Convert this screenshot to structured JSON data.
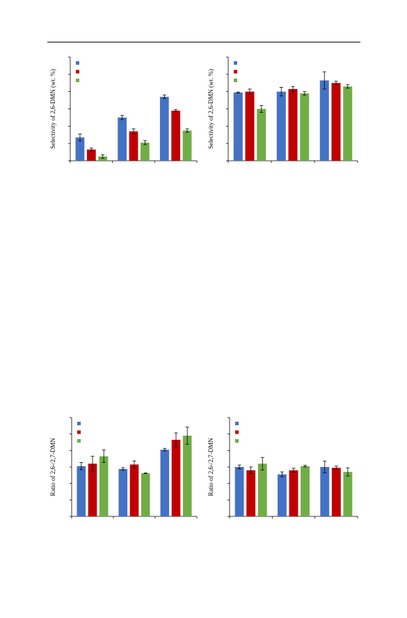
{
  "page": {
    "header_rule": true
  },
  "chart_data": [
    {
      "type": "bar",
      "ylabel": "Selectivity of 2,6-DMN (wt. %)",
      "ylim": [
        0,
        60
      ],
      "yticks": [
        0,
        10,
        20,
        30,
        40,
        50,
        60
      ],
      "groups": 3,
      "legend": "top-left",
      "series": [
        {
          "color": "#4472C4",
          "values": [
            13.5,
            25,
            37
          ],
          "errors": [
            2,
            1.2,
            1
          ]
        },
        {
          "color": "#C00000",
          "values": [
            6.5,
            17,
            29
          ],
          "errors": [
            0.8,
            1.5,
            0.6
          ]
        },
        {
          "color": "#70AD47",
          "values": [
            2.5,
            10.5,
            17.5
          ],
          "errors": [
            1,
            1.2,
            1
          ]
        }
      ]
    },
    {
      "type": "bar",
      "ylabel": "Selectivity of 2,6-DMN (wt. %)",
      "ylim": [
        0,
        60
      ],
      "yticks": [
        0,
        10,
        20,
        30,
        40,
        50,
        60
      ],
      "groups": 3,
      "legend": "top-left",
      "series": [
        {
          "color": "#4472C4",
          "values": [
            39.5,
            40,
            46.5
          ],
          "errors": [
            0.3,
            2.5,
            5
          ]
        },
        {
          "color": "#C00000",
          "values": [
            40,
            41.5,
            45
          ],
          "errors": [
            1.5,
            1.5,
            1
          ]
        },
        {
          "color": "#70AD47",
          "values": [
            30,
            39,
            43
          ],
          "errors": [
            2,
            1,
            1
          ]
        }
      ]
    },
    {
      "type": "bar",
      "ylabel": "Ratio of 2,6-/2,7-DMN",
      "ylim": [
        0,
        6
      ],
      "yticks": [
        0,
        1,
        2,
        3,
        4,
        5,
        6
      ],
      "groups": 3,
      "legend": "top-left",
      "series": [
        {
          "color": "#4472C4",
          "values": [
            3.05,
            2.88,
            4.05
          ],
          "errors": [
            0.22,
            0.08,
            0.08
          ]
        },
        {
          "color": "#C00000",
          "values": [
            3.2,
            3.15,
            4.65
          ],
          "errors": [
            0.45,
            0.22,
            0.42
          ]
        },
        {
          "color": "#70AD47",
          "values": [
            3.65,
            2.62,
            4.9
          ],
          "errors": [
            0.38,
            0.02,
            0.52
          ]
        }
      ]
    },
    {
      "type": "bar",
      "ylabel": "Ratio of 2,6-/2,7-DMN",
      "ylim": [
        0,
        6
      ],
      "yticks": [
        0,
        1,
        2,
        3,
        4,
        5,
        6
      ],
      "groups": 3,
      "legend": "top-left",
      "series": [
        {
          "color": "#4472C4",
          "values": [
            3.0,
            2.55,
            3.0
          ],
          "errors": [
            0.12,
            0.15,
            0.35
          ]
        },
        {
          "color": "#C00000",
          "values": [
            2.8,
            2.8,
            2.95
          ],
          "errors": [
            0.2,
            0.12,
            0.1
          ]
        },
        {
          "color": "#70AD47",
          "values": [
            3.2,
            3.05,
            2.7
          ],
          "errors": [
            0.38,
            0.05,
            0.25
          ]
        }
      ]
    }
  ]
}
